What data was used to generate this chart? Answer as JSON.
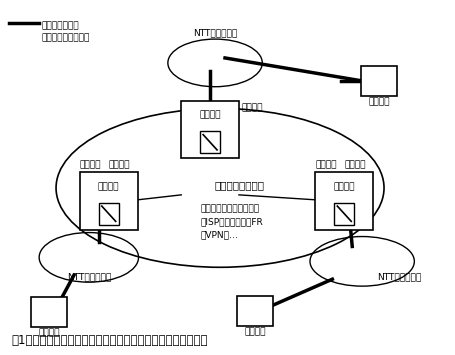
{
  "title": "図1：二種事業者のアクセス回線（専用線線端接続）利用事例",
  "legend_line1": "：アクセス回線",
  "legend_line2": "（専用線線端接続）",
  "ntt_top": "NTT地域専用網",
  "ntt_bottom_left": "NTT地域専用網",
  "ntt_bottom_right": "NTT地域専用網",
  "customer_top_right": "顧客ビル",
  "customer_bottom_left": "顧客ビル",
  "customer_bottom_center": "顧客ビル",
  "center_bldg": "二種ビル",
  "left_bldg": "二種ビル",
  "right_bldg": "二種ビル",
  "center_equip": "二種設備",
  "left_equip": "二種設備",
  "right_equip": "二種設備",
  "network_label": "二種ネットワーク",
  "service_line1": "二種事業者通信サービス",
  "service_line2": "・ISP（専用線）・FR",
  "service_line3": "・VPN　…",
  "bg_color": "#ffffff"
}
